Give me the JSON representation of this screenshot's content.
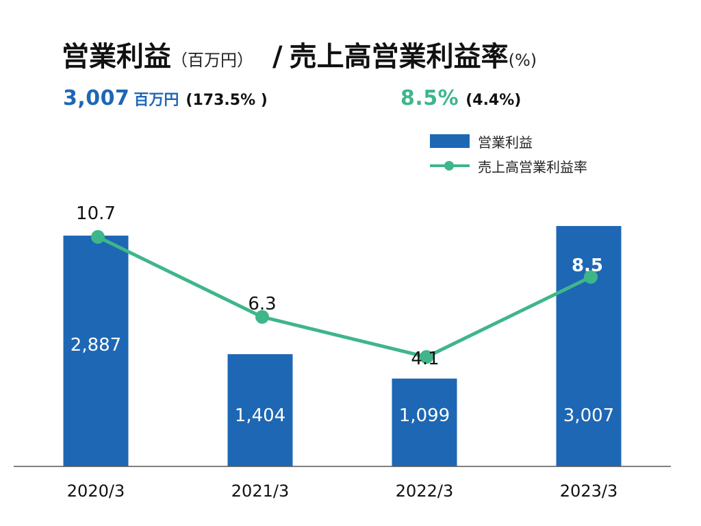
{
  "header": {
    "title_main": "営業利益",
    "title_main_unit": "（百万円）",
    "title_slash": "/",
    "title_second": "売上高営業利益率",
    "title_second_unit": "(%)"
  },
  "summary": {
    "profit_value": "3,007",
    "profit_unit": "百万円",
    "profit_change": "(173.5% )",
    "margin_value": "8.5%",
    "margin_change": "(4.4%)"
  },
  "colors": {
    "bar": "#1e67b4",
    "line": "#3fb68a",
    "axis": "#555555"
  },
  "chart_data": {
    "type": "bar",
    "categories": [
      "2020/3",
      "2021/3",
      "2022/3",
      "2023/3"
    ],
    "series": [
      {
        "name": "営業利益",
        "type": "bar",
        "values": [
          2887,
          1404,
          1099,
          3007
        ],
        "labels": [
          "2,887",
          "1,404",
          "1,099",
          "3,007"
        ]
      },
      {
        "name": "売上高営業利益率",
        "type": "line",
        "values": [
          10.7,
          6.3,
          4.1,
          8.5
        ],
        "labels": [
          "10.7",
          "6.3",
          "4.1",
          "8.5"
        ]
      }
    ],
    "legend": [
      "営業利益",
      "売上高営業利益率"
    ],
    "legend_position": "top-right",
    "grid": false
  }
}
